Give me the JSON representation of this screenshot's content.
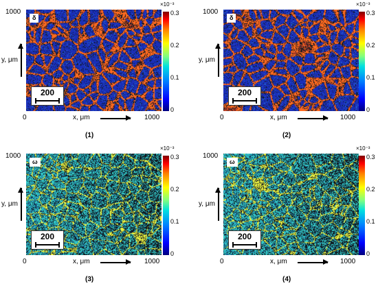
{
  "panels": [
    {
      "id": "1",
      "caption": "(1)",
      "symbol": "δ",
      "y_top": "1000",
      "y_label": "y, μm",
      "x_zero": "0",
      "x_max": "1000",
      "x_label": "x, μm",
      "scale_value": "200",
      "colorbar": {
        "exponent": "×10⁻³",
        "ticks": [
          "0.3",
          "0.2",
          "0.1",
          "0"
        ]
      },
      "style": "delta"
    },
    {
      "id": "2",
      "caption": "(2)",
      "symbol": "δ",
      "y_top": "1000",
      "y_label": "y, μm",
      "x_zero": "0",
      "x_max": "1000",
      "x_label": "x, μm",
      "scale_value": "200",
      "colorbar": {
        "exponent": "×10⁻³",
        "ticks": [
          "0.3",
          "0.2",
          "0.1",
          "0"
        ]
      },
      "style": "delta"
    },
    {
      "id": "3",
      "caption": "(3)",
      "symbol": "ω",
      "y_top": "1000",
      "y_label": "y, μm",
      "x_zero": "0",
      "x_max": "1000",
      "x_label": "x, μm",
      "scale_value": "200",
      "colorbar": {
        "exponent": "×10⁻³",
        "ticks": [
          "0.3",
          "0.2",
          "0.1",
          "0"
        ]
      },
      "style": "omega"
    },
    {
      "id": "4",
      "caption": "(4)",
      "symbol": "ω",
      "y_top": "1000",
      "y_label": "y, μm",
      "x_zero": "0",
      "x_max": "1000",
      "x_label": "x, μm",
      "scale_value": "200",
      "colorbar": {
        "exponent": "×10⁻³",
        "ticks": [
          "0.3",
          "0.2",
          "0.1",
          "0"
        ]
      },
      "style": "omega"
    }
  ],
  "colors": {
    "grain_blue": "#1a2fb8",
    "boundary_orange": "#ff6a1f",
    "omega_cyan": "#33c7c7",
    "omega_yellow": "#e8f040",
    "dark": "#101820"
  }
}
